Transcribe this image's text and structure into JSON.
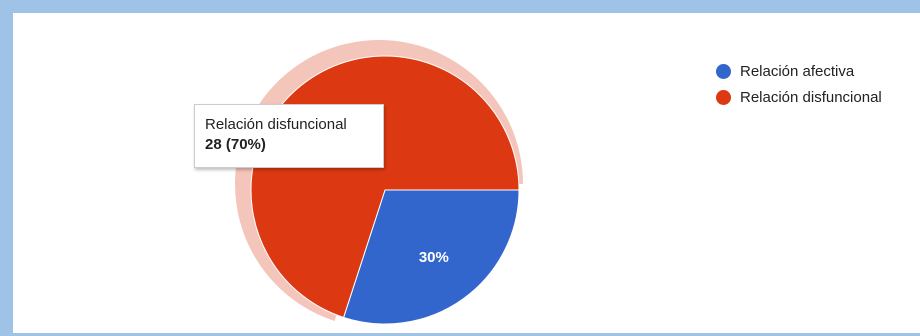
{
  "colors": {
    "frame": "#9fc3e6",
    "highlight_ring": "#f4c5bb"
  },
  "chart_data": {
    "type": "pie",
    "slices": [
      {
        "name": "Relación afectiva",
        "value": 12,
        "percent": 30,
        "color": "#3366cc",
        "label": "30%"
      },
      {
        "name": "Relación disfuncional",
        "value": 28,
        "percent": 70,
        "color": "#dc3912",
        "label": ""
      }
    ],
    "start_angle_deg": 90,
    "legend_position": "top-right",
    "legend": [
      {
        "label": "Relación afectiva",
        "color": "#3366cc"
      },
      {
        "label": "Relación disfuncional",
        "color": "#dc3912"
      }
    ],
    "tooltip": {
      "label": "Relación disfuncional",
      "value": "28 (70%)"
    }
  }
}
